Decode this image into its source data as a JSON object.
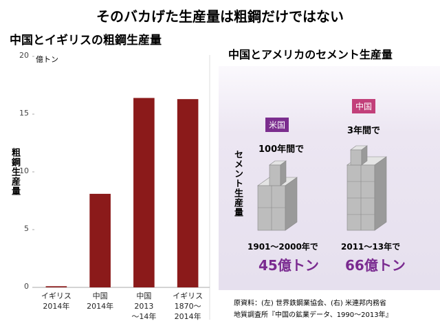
{
  "header": {
    "title": "そのバカげた生産量は粗鋼だけではない"
  },
  "chart_data": {
    "type": "bar",
    "title": "中国とイギリスの粗鋼生産量",
    "unit": "億トン",
    "ylabel": "粗鋼生産量",
    "categories": [
      "イギリス\n2014年",
      "中国\n2014年",
      "中国\n2013\n～14年",
      "イギリス\n1870～\n2014年"
    ],
    "values": [
      0.1,
      8.1,
      16.4,
      16.3
    ],
    "color": "#8b1a1a",
    "ylim": [
      0,
      20
    ],
    "yticks": [
      0,
      5,
      10,
      15,
      20
    ],
    "grid": false
  },
  "cement_panel": {
    "title": "中国とアメリカのセメント生産量",
    "ylabel": "セメント生産量",
    "items": [
      {
        "tag": "米国",
        "period": "100年間で",
        "years": "1901～2000年で",
        "amount": "45億トン"
      },
      {
        "tag": "中国",
        "period": "3年間で",
        "years": "2011～13年で",
        "amount": "66億トン"
      }
    ]
  },
  "source": [
    "原資料：(左) 世界鉄鋼業協会、(右) 米連邦内務省",
    "地質調査所『中国の鉱業データ、1990～2013年』"
  ]
}
